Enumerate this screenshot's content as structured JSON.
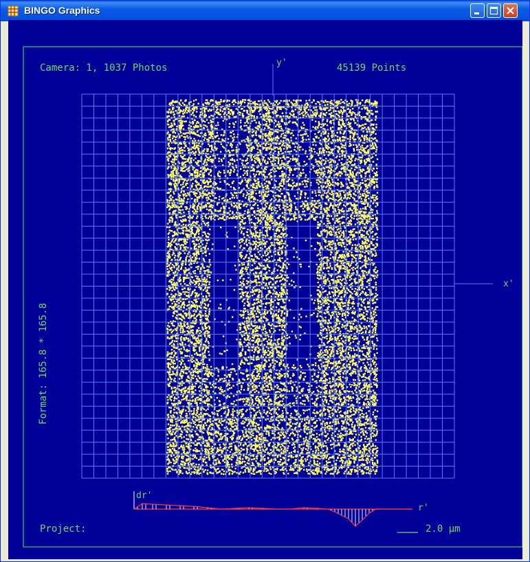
{
  "window": {
    "title": "BINGO Graphics",
    "icon": "bingo-app-icon",
    "buttons": {
      "minimize": "minimize-icon",
      "maximize": "maximize-icon",
      "close": "close-icon"
    }
  },
  "plot": {
    "camera_label": "Camera: 1, 1037 Photos",
    "points_label": "45139 Points",
    "y_axis_label": "y'",
    "x_axis_label": "x'",
    "format_label": "Format: 165.8 * 165.8",
    "project_label": "Project:",
    "dr_label": "dr'",
    "r_label": "r'",
    "scale_label": "2.0 µm",
    "colors": {
      "background": "#000099",
      "frame": "#33cc66",
      "text": "#66dd66",
      "grid": "#5c7bff",
      "points": "#ffff66",
      "profile_line": "#ff3b3b",
      "profile_ticks": "#ffffff"
    }
  }
}
